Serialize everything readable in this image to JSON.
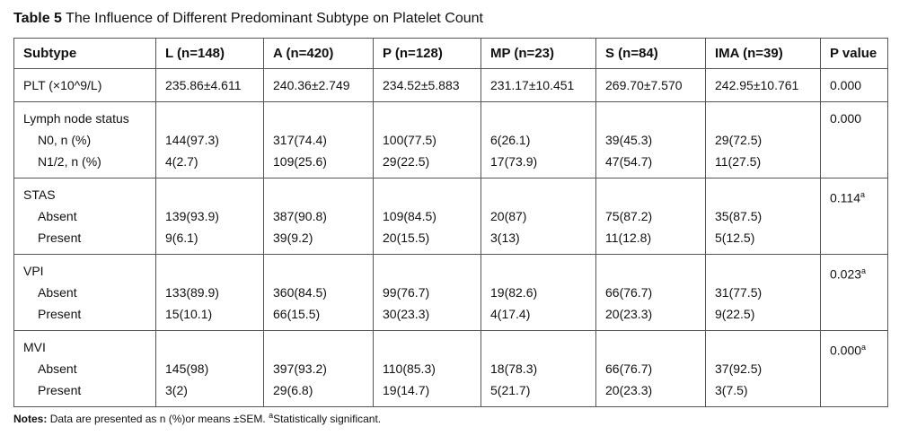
{
  "title": {
    "label": "Table 5",
    "text": "The Influence of Different Predominant Subtype on Platelet Count"
  },
  "table": {
    "header": [
      "Subtype",
      "L (n=148)",
      "A (n=420)",
      "P (n=128)",
      "MP (n=23)",
      "S (n=84)",
      "IMA (n=39)",
      "P value"
    ],
    "groups": [
      {
        "p": "0.000",
        "rows": [
          {
            "label": "PLT (×10^9/L)",
            "values": [
              "235.86±4.611",
              "240.36±2.749",
              "234.52±5.883",
              "231.17±10.451",
              "269.70±7.570",
              "242.95±10.761"
            ]
          }
        ]
      },
      {
        "title": "Lymph node status",
        "p": "0.000",
        "rows": [
          {
            "label": "N0, n (%)",
            "values": [
              "144(97.3)",
              "317(74.4)",
              "100(77.5)",
              "6(26.1)",
              "39(45.3)",
              "29(72.5)"
            ]
          },
          {
            "label": "N1/2, n (%)",
            "values": [
              "4(2.7)",
              "109(25.6)",
              "29(22.5)",
              "17(73.9)",
              "47(54.7)",
              "11(27.5)"
            ]
          }
        ]
      },
      {
        "title": "STAS",
        "p": "0.114",
        "p_sup": "a",
        "rows": [
          {
            "label": "Absent",
            "values": [
              "139(93.9)",
              "387(90.8)",
              "109(84.5)",
              "20(87)",
              "75(87.2)",
              "35(87.5)"
            ]
          },
          {
            "label": "Present",
            "values": [
              "9(6.1)",
              "39(9.2)",
              "20(15.5)",
              "3(13)",
              "11(12.8)",
              "5(12.5)"
            ]
          }
        ]
      },
      {
        "title": "VPI",
        "p": "0.023",
        "p_sup": "a",
        "rows": [
          {
            "label": "Absent",
            "values": [
              "133(89.9)",
              "360(84.5)",
              "99(76.7)",
              "19(82.6)",
              "66(76.7)",
              "31(77.5)"
            ]
          },
          {
            "label": "Present",
            "values": [
              "15(10.1)",
              "66(15.5)",
              "30(23.3)",
              "4(17.4)",
              "20(23.3)",
              "9(22.5)"
            ]
          }
        ]
      },
      {
        "title": "MVI",
        "p": "0.000",
        "p_sup": "a",
        "rows": [
          {
            "label": "Absent",
            "values": [
              "145(98)",
              "397(93.2)",
              "110(85.3)",
              "18(78.3)",
              "66(76.7)",
              "37(92.5)"
            ]
          },
          {
            "label": "Present",
            "values": [
              "3(2)",
              "29(6.8)",
              "19(14.7)",
              "5(21.7)",
              "20(23.3)",
              "3(7.5)"
            ]
          }
        ]
      }
    ]
  },
  "notes": {
    "label": "Notes:",
    "text": "Data are presented as n (%)or means ±SEM.",
    "sup": "a",
    "after": "Statistically significant."
  }
}
